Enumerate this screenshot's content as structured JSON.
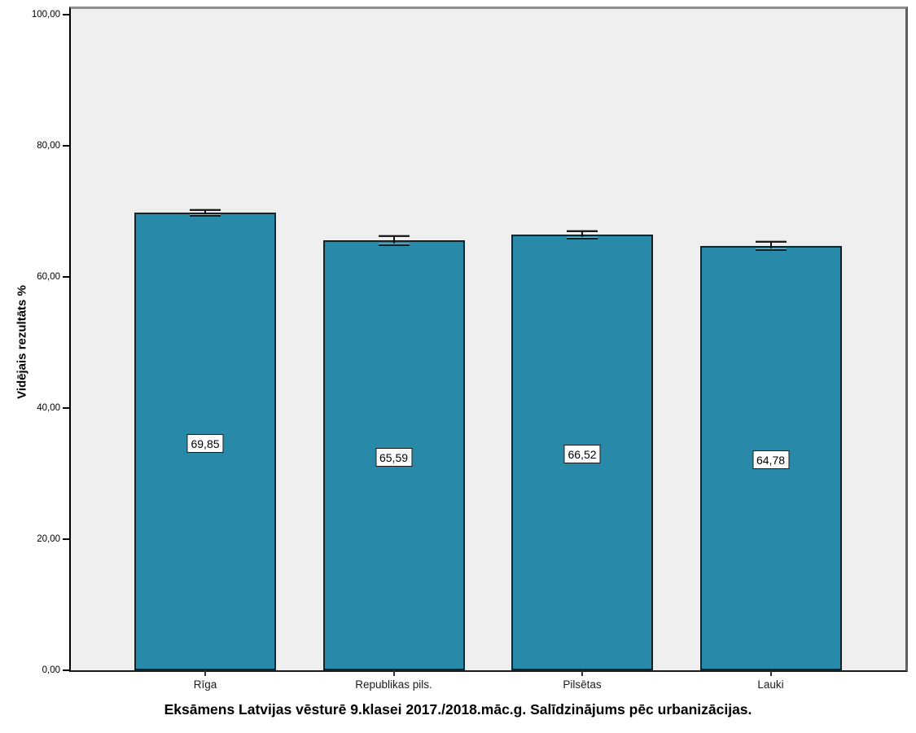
{
  "chart_data": {
    "type": "bar",
    "title": "Eksāmens Latvijas vēsturē 9.klasei 2017./2018.māc.g. Salīdzinājums pēc urbanizācijas.",
    "xlabel": "",
    "ylabel": "Vidējais rezultāts %",
    "categories": [
      "Rīga",
      "Republikas pils.",
      "Pilsētas",
      "Lauki"
    ],
    "values": [
      69.85,
      65.59,
      66.52,
      64.78
    ],
    "value_labels": [
      "69,85",
      "65,59",
      "66,52",
      "64,78"
    ],
    "error_bars": [
      0.45,
      0.64,
      0.56,
      0.68
    ],
    "ylim": [
      0,
      100
    ],
    "y_ticks": [
      {
        "value": 0,
        "label": "0,00"
      },
      {
        "value": 20,
        "label": "20,00"
      },
      {
        "value": 40,
        "label": "40,00"
      },
      {
        "value": 60,
        "label": "60,00"
      },
      {
        "value": 80,
        "label": "80,00"
      },
      {
        "value": 100,
        "label": "100,00"
      }
    ],
    "grid": false,
    "legend": false,
    "colors": {
      "bar_fill": "#2889A8",
      "bar_border": "#10242C",
      "plot_background": "#EFEFEF",
      "label_box_fill": "#FFFFFF",
      "label_box_border": "#1A1A1A"
    }
  }
}
